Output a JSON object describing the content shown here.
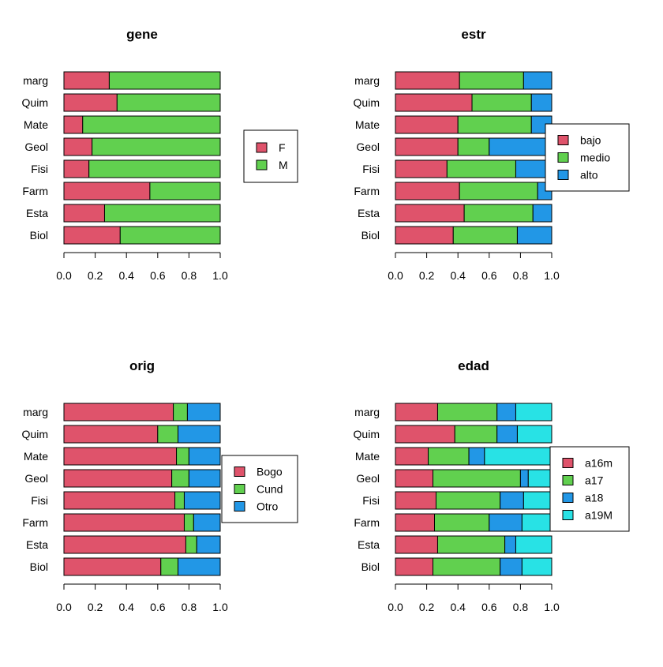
{
  "colors": {
    "red": "#DF536B",
    "green": "#61D04F",
    "blue": "#2297E6",
    "cyan": "#28E2E5"
  },
  "chart_data": [
    {
      "type": "bar",
      "stacked": "horizontal-proportion",
      "title": "gene",
      "categories": [
        "Biol",
        "Esta",
        "Farm",
        "Fisi",
        "Geol",
        "Mate",
        "Quim",
        "marg"
      ],
      "xlim": [
        0,
        1
      ],
      "xticks": [
        "0.0",
        "0.2",
        "0.4",
        "0.6",
        "0.8",
        "1.0"
      ],
      "legend_position": "right",
      "series": [
        {
          "name": "F",
          "color": "#DF536B",
          "values": [
            0.36,
            0.26,
            0.55,
            0.16,
            0.18,
            0.12,
            0.34,
            0.29
          ]
        },
        {
          "name": "M",
          "color": "#61D04F",
          "values": [
            0.64,
            0.74,
            0.45,
            0.84,
            0.82,
            0.88,
            0.66,
            0.71
          ]
        }
      ]
    },
    {
      "type": "bar",
      "stacked": "horizontal-proportion",
      "title": "estr",
      "categories": [
        "Biol",
        "Esta",
        "Farm",
        "Fisi",
        "Geol",
        "Mate",
        "Quim",
        "marg"
      ],
      "xlim": [
        0,
        1
      ],
      "xticks": [
        "0.0",
        "0.2",
        "0.4",
        "0.6",
        "0.8",
        "1.0"
      ],
      "legend_position": "right",
      "series": [
        {
          "name": "bajo",
          "color": "#DF536B",
          "values": [
            0.37,
            0.44,
            0.41,
            0.33,
            0.4,
            0.4,
            0.49,
            0.41
          ]
        },
        {
          "name": "medio",
          "color": "#61D04F",
          "values": [
            0.41,
            0.44,
            0.5,
            0.44,
            0.2,
            0.47,
            0.38,
            0.41
          ]
        },
        {
          "name": "alto",
          "color": "#2297E6",
          "values": [
            0.22,
            0.12,
            0.09,
            0.23,
            0.4,
            0.13,
            0.13,
            0.18
          ]
        }
      ]
    },
    {
      "type": "bar",
      "stacked": "horizontal-proportion",
      "title": "orig",
      "categories": [
        "Biol",
        "Esta",
        "Farm",
        "Fisi",
        "Geol",
        "Mate",
        "Quim",
        "marg"
      ],
      "xlim": [
        0,
        1
      ],
      "xticks": [
        "0.0",
        "0.2",
        "0.4",
        "0.6",
        "0.8",
        "1.0"
      ],
      "legend_position": "right",
      "series": [
        {
          "name": "Bogo",
          "color": "#DF536B",
          "values": [
            0.62,
            0.78,
            0.77,
            0.71,
            0.69,
            0.72,
            0.6,
            0.7
          ]
        },
        {
          "name": "Cund",
          "color": "#61D04F",
          "values": [
            0.11,
            0.07,
            0.06,
            0.06,
            0.11,
            0.08,
            0.13,
            0.09
          ]
        },
        {
          "name": "Otro",
          "color": "#2297E6",
          "values": [
            0.27,
            0.15,
            0.17,
            0.23,
            0.2,
            0.2,
            0.27,
            0.21
          ]
        }
      ]
    },
    {
      "type": "bar",
      "stacked": "horizontal-proportion",
      "title": "edad",
      "categories": [
        "Biol",
        "Esta",
        "Farm",
        "Fisi",
        "Geol",
        "Mate",
        "Quim",
        "marg"
      ],
      "xlim": [
        0,
        1
      ],
      "xticks": [
        "0.0",
        "0.2",
        "0.4",
        "0.6",
        "0.8",
        "1.0"
      ],
      "legend_position": "right",
      "series": [
        {
          "name": "a16m",
          "color": "#DF536B",
          "values": [
            0.24,
            0.27,
            0.25,
            0.26,
            0.24,
            0.21,
            0.38,
            0.27
          ]
        },
        {
          "name": "a17",
          "color": "#61D04F",
          "values": [
            0.43,
            0.43,
            0.35,
            0.41,
            0.56,
            0.26,
            0.27,
            0.38
          ]
        },
        {
          "name": "a18",
          "color": "#2297E6",
          "values": [
            0.14,
            0.07,
            0.21,
            0.15,
            0.05,
            0.1,
            0.13,
            0.12
          ]
        },
        {
          "name": "a19M",
          "color": "#28E2E5",
          "values": [
            0.19,
            0.23,
            0.19,
            0.18,
            0.15,
            0.43,
            0.22,
            0.23
          ]
        }
      ]
    }
  ]
}
